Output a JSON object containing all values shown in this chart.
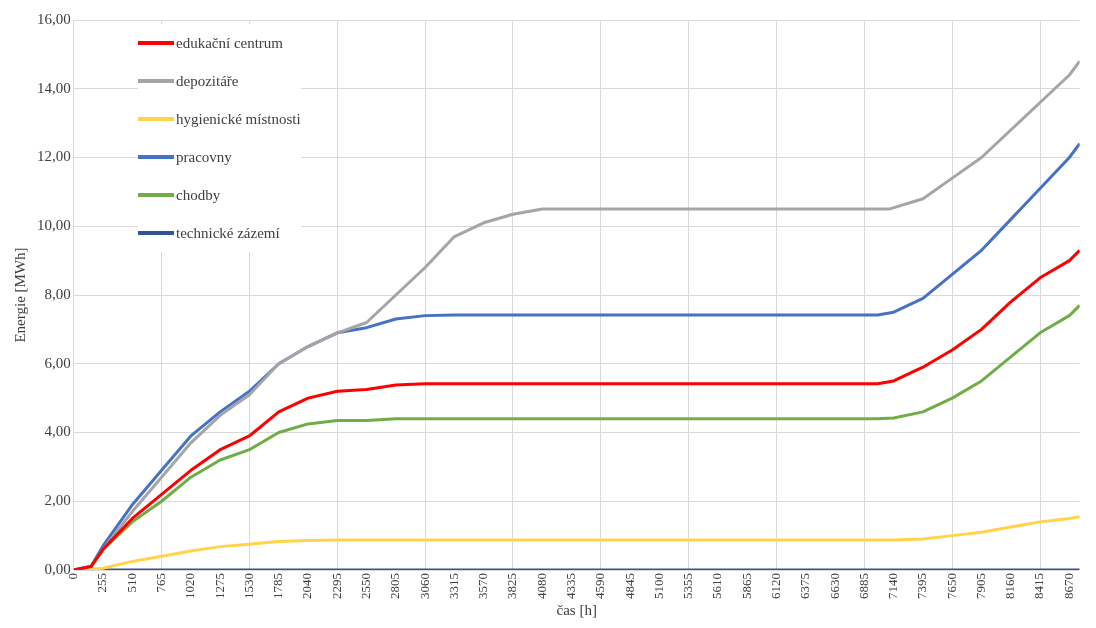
{
  "chart_data": {
    "type": "line",
    "xlabel": "čas [h]",
    "ylabel": "Energie [MWh]",
    "xlim": [
      0,
      8760
    ],
    "xticks": [
      0,
      255,
      510,
      765,
      1020,
      1275,
      1530,
      1785,
      2040,
      2295,
      2550,
      2805,
      3060,
      3315,
      3570,
      3825,
      4080,
      4335,
      4590,
      4845,
      5100,
      5355,
      5610,
      5865,
      6120,
      6375,
      6630,
      6885,
      7140,
      7395,
      7650,
      7905,
      8160,
      8415,
      8670
    ],
    "ylim": [
      0,
      16
    ],
    "yticks": [
      {
        "value": 0,
        "label": "0,00"
      },
      {
        "value": 2,
        "label": "2,00"
      },
      {
        "value": 4,
        "label": "4,00"
      },
      {
        "value": 6,
        "label": "6,00"
      },
      {
        "value": 8,
        "label": "8,00"
      },
      {
        "value": 10,
        "label": "10,00"
      },
      {
        "value": 12,
        "label": "12,00"
      },
      {
        "value": 14,
        "label": "14,00"
      },
      {
        "value": 16,
        "label": "16,00"
      }
    ],
    "grid": true,
    "legend": "top left",
    "marker": "none",
    "line_style": "solid",
    "series": [
      {
        "name": "edukační centrum",
        "color": "#ff0000",
        "x": [
          0,
          150,
          255,
          510,
          765,
          1020,
          1275,
          1530,
          1785,
          2040,
          2295,
          2550,
          2805,
          3060,
          7000,
          7140,
          7395,
          7650,
          7905,
          8160,
          8415,
          8670,
          8760
        ],
        "values": [
          0,
          0.1,
          0.6,
          1.5,
          2.2,
          2.9,
          3.5,
          3.9,
          4.6,
          5.0,
          5.2,
          5.25,
          5.38,
          5.42,
          5.42,
          5.5,
          5.9,
          6.4,
          7.0,
          7.8,
          8.5,
          9.0,
          9.3
        ]
      },
      {
        "name": "depozitáře",
        "color": "#a5a5a5",
        "x": [
          0,
          150,
          255,
          510,
          765,
          1020,
          1275,
          1530,
          1785,
          2040,
          2295,
          2550,
          2805,
          3060,
          3315,
          3570,
          3825,
          4080,
          7100,
          7395,
          7650,
          7905,
          8160,
          8415,
          8670,
          8760
        ],
        "values": [
          0,
          0.1,
          0.6,
          1.7,
          2.7,
          3.7,
          4.5,
          5.1,
          6.0,
          6.5,
          6.9,
          7.2,
          8.0,
          8.8,
          9.7,
          10.1,
          10.35,
          10.5,
          10.5,
          10.8,
          11.4,
          12.0,
          12.8,
          13.6,
          14.4,
          14.8
        ]
      },
      {
        "name": "hygienické místnosti",
        "color": "#ffd448",
        "x": [
          0,
          255,
          510,
          765,
          1020,
          1275,
          1530,
          1785,
          2040,
          2295,
          7140,
          7395,
          7650,
          7905,
          8160,
          8415,
          8670,
          8760
        ],
        "values": [
          0,
          0.05,
          0.25,
          0.4,
          0.55,
          0.68,
          0.75,
          0.83,
          0.86,
          0.87,
          0.87,
          0.9,
          1.0,
          1.1,
          1.25,
          1.4,
          1.5,
          1.55
        ]
      },
      {
        "name": "pracovny",
        "color": "#4472c4",
        "x": [
          0,
          150,
          255,
          510,
          765,
          1020,
          1275,
          1530,
          1785,
          2040,
          2295,
          2550,
          2805,
          3060,
          3315,
          7000,
          7140,
          7395,
          7650,
          7905,
          8160,
          8415,
          8670,
          8760
        ],
        "values": [
          0,
          0.1,
          0.7,
          1.9,
          2.9,
          3.9,
          4.6,
          5.2,
          6.0,
          6.5,
          6.9,
          7.05,
          7.3,
          7.4,
          7.42,
          7.42,
          7.5,
          7.9,
          8.6,
          9.3,
          10.2,
          11.1,
          12.0,
          12.4
        ]
      },
      {
        "name": "chodby",
        "color": "#70ad47",
        "x": [
          0,
          150,
          255,
          510,
          765,
          1020,
          1275,
          1530,
          1785,
          2040,
          2295,
          2550,
          2805,
          7000,
          7140,
          7395,
          7650,
          7905,
          8160,
          8415,
          8670,
          8760
        ],
        "values": [
          0,
          0.1,
          0.6,
          1.4,
          2.0,
          2.7,
          3.2,
          3.5,
          4.0,
          4.25,
          4.35,
          4.35,
          4.4,
          4.4,
          4.42,
          4.6,
          5.0,
          5.5,
          6.2,
          6.9,
          7.4,
          7.7
        ]
      },
      {
        "name": "technické zázemí",
        "color": "#2f5597",
        "x": [
          0,
          8760
        ],
        "values": [
          0,
          0
        ]
      }
    ]
  }
}
